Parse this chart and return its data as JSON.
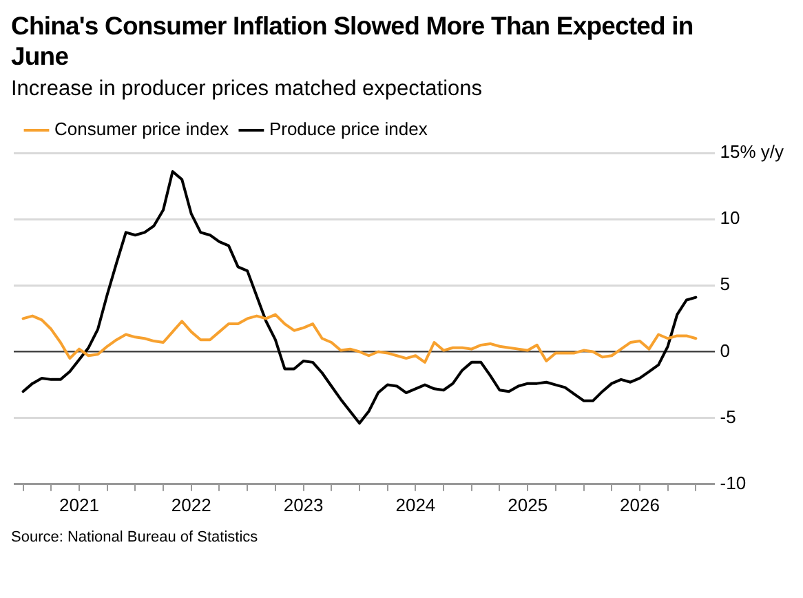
{
  "chart_data": {
    "type": "line",
    "title": "China's Consumer Inflation Slowed More Than Expected in June",
    "subtitle": "Increase in producer prices matched expectations",
    "annotations": [
      "Source: National Bureau of Statistics"
    ],
    "x": [
      "2020-07",
      "2020-08",
      "2020-09",
      "2020-10",
      "2020-11",
      "2020-12",
      "2021-01",
      "2021-02",
      "2021-03",
      "2021-04",
      "2021-05",
      "2021-06",
      "2021-07",
      "2021-08",
      "2021-09",
      "2021-10",
      "2021-11",
      "2021-12",
      "2022-01",
      "2022-02",
      "2022-03",
      "2022-04",
      "2022-05",
      "2022-06",
      "2022-07",
      "2022-08",
      "2022-09",
      "2022-10",
      "2022-11",
      "2022-12",
      "2023-01",
      "2023-02",
      "2023-03",
      "2023-04",
      "2023-05",
      "2023-06",
      "2023-07",
      "2023-08",
      "2023-09",
      "2023-10",
      "2023-11",
      "2023-12",
      "2024-01",
      "2024-02",
      "2024-03",
      "2024-04",
      "2024-05",
      "2024-06",
      "2024-07",
      "2024-08",
      "2024-09",
      "2024-10",
      "2024-11",
      "2024-12",
      "2025-01",
      "2025-02",
      "2025-03",
      "2025-04",
      "2025-05",
      "2025-06",
      "2025-07",
      "2025-08",
      "2025-09",
      "2025-10",
      "2025-11",
      "2025-12",
      "2026-01",
      "2026-02",
      "2026-03",
      "2026-04",
      "2026-05",
      "2026-06",
      "2026-07"
    ],
    "series": [
      {
        "name": "Consumer price index",
        "color": "#f7a12f",
        "values": [
          2.5,
          2.7,
          2.4,
          1.7,
          0.7,
          -0.5,
          0.2,
          -0.3,
          -0.2,
          0.4,
          0.9,
          1.3,
          1.1,
          1.0,
          0.8,
          0.7,
          1.5,
          2.3,
          1.5,
          0.9,
          0.9,
          1.5,
          2.1,
          2.1,
          2.5,
          2.7,
          2.5,
          2.8,
          2.1,
          1.6,
          1.8,
          2.1,
          1.0,
          0.7,
          0.1,
          0.2,
          0.0,
          -0.3,
          0.0,
          -0.1,
          -0.3,
          -0.5,
          -0.3,
          -0.8,
          0.7,
          0.1,
          0.3,
          0.3,
          0.2,
          0.5,
          0.6,
          0.4,
          0.3,
          0.2,
          0.1,
          0.5,
          -0.7,
          -0.1,
          -0.1,
          -0.1,
          0.1,
          0.0,
          -0.4,
          -0.3,
          0.2,
          0.7,
          0.8,
          0.2,
          1.3,
          1.0,
          1.2,
          1.2,
          1.0
        ]
      },
      {
        "name": "Produce price index",
        "color": "#000000",
        "values": [
          -3.0,
          -2.4,
          -2.0,
          -2.1,
          -2.1,
          -1.5,
          -0.6,
          0.3,
          1.7,
          4.3,
          6.7,
          9.0,
          8.8,
          9.0,
          9.5,
          10.7,
          13.6,
          13.0,
          10.4,
          9.0,
          8.8,
          8.3,
          8.0,
          6.4,
          6.1,
          4.2,
          2.3,
          0.9,
          -1.3,
          -1.3,
          -0.7,
          -0.8,
          -1.6,
          -2.6,
          -3.6,
          -4.5,
          -5.4,
          -4.5,
          -3.1,
          -2.5,
          -2.6,
          -3.1,
          -2.8,
          -2.5,
          -2.8,
          -2.9,
          -2.4,
          -1.4,
          -0.8,
          -0.8,
          -1.8,
          -2.9,
          -3.0,
          -2.6,
          -2.4,
          -2.4,
          -2.3,
          -2.5,
          -2.7,
          -3.2,
          -3.7,
          -3.7,
          -3.0,
          -2.4,
          -2.1,
          -2.3,
          -2.0,
          -1.5,
          -1.0,
          0.4,
          2.8,
          3.9,
          4.1
        ]
      }
    ],
    "xlim": [
      "2020-06",
      "2026-09"
    ],
    "xticks": [
      {
        "value": "2020-07",
        "label": null
      },
      {
        "value": "2020-10",
        "label": null
      },
      "2021",
      {
        "value": "2021-04",
        "label": null
      },
      {
        "value": "2021-07",
        "label": null
      },
      {
        "value": "2021-10",
        "label": null
      },
      "2022",
      {
        "value": "2022-04",
        "label": null
      },
      {
        "value": "2022-07",
        "label": null
      },
      {
        "value": "2022-10",
        "label": null
      },
      "2023",
      {
        "value": "2023-04",
        "label": null
      },
      {
        "value": "2023-07",
        "label": null
      },
      {
        "value": "2023-10",
        "label": null
      },
      "2024",
      {
        "value": "2024-04",
        "label": null
      },
      {
        "value": "2024-07",
        "label": null
      },
      {
        "value": "2024-10",
        "label": null
      },
      "2025",
      {
        "value": "2025-04",
        "label": null
      },
      {
        "value": "2025-07",
        "label": null
      },
      {
        "value": "2025-10",
        "label": null
      },
      "2026",
      {
        "value": "2026-04",
        "label": null
      },
      {
        "value": "2026-07",
        "label": null
      }
    ],
    "ylim": [
      -10,
      15
    ],
    "yticks": [
      -10,
      -5,
      0,
      5,
      10,
      {
        "value": 15,
        "label": "15% y/y"
      }
    ],
    "grid": "y",
    "legend": "top left",
    "marker": "none",
    "line_style": "solid"
  }
}
